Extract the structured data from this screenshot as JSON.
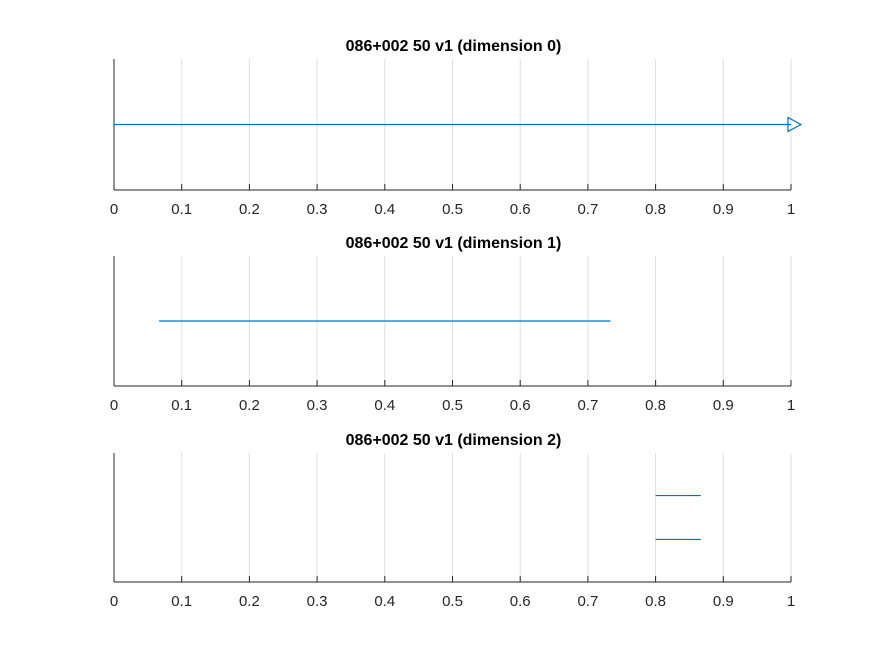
{
  "colors": {
    "series": "#0072BD",
    "grid": "#DFDFDF",
    "axis": "#262626",
    "title": "#000000"
  },
  "chart_data": [
    {
      "type": "line",
      "title": "086+002 50 v1 (dimension 0)",
      "xlim": [
        0,
        1
      ],
      "grid": "vertical",
      "xticks": [
        "0",
        "0.1",
        "0.2",
        "0.3",
        "0.4",
        "0.5",
        "0.6",
        "0.7",
        "0.8",
        "0.9",
        "1"
      ],
      "segments": [
        {
          "x": [
            0,
            1
          ],
          "level": 0.5,
          "end_marker": "right-triangle"
        }
      ]
    },
    {
      "type": "line",
      "title": "086+002 50 v1 (dimension 1)",
      "xlim": [
        0,
        1
      ],
      "grid": "vertical",
      "xticks": [
        "0",
        "0.1",
        "0.2",
        "0.3",
        "0.4",
        "0.5",
        "0.6",
        "0.7",
        "0.8",
        "0.9",
        "1"
      ],
      "segments": [
        {
          "x": [
            0.0667,
            0.7333
          ],
          "level": 0.5
        }
      ]
    },
    {
      "type": "line",
      "title": "086+002 50 v1 (dimension 2)",
      "xlim": [
        0,
        1
      ],
      "grid": "vertical",
      "xticks": [
        "0",
        "0.1",
        "0.2",
        "0.3",
        "0.4",
        "0.5",
        "0.6",
        "0.7",
        "0.8",
        "0.9",
        "1"
      ],
      "segments": [
        {
          "x": [
            0.8,
            0.8667
          ],
          "level": 0.67
        },
        {
          "x": [
            0.8,
            0.8667
          ],
          "level": 0.33
        }
      ]
    }
  ]
}
